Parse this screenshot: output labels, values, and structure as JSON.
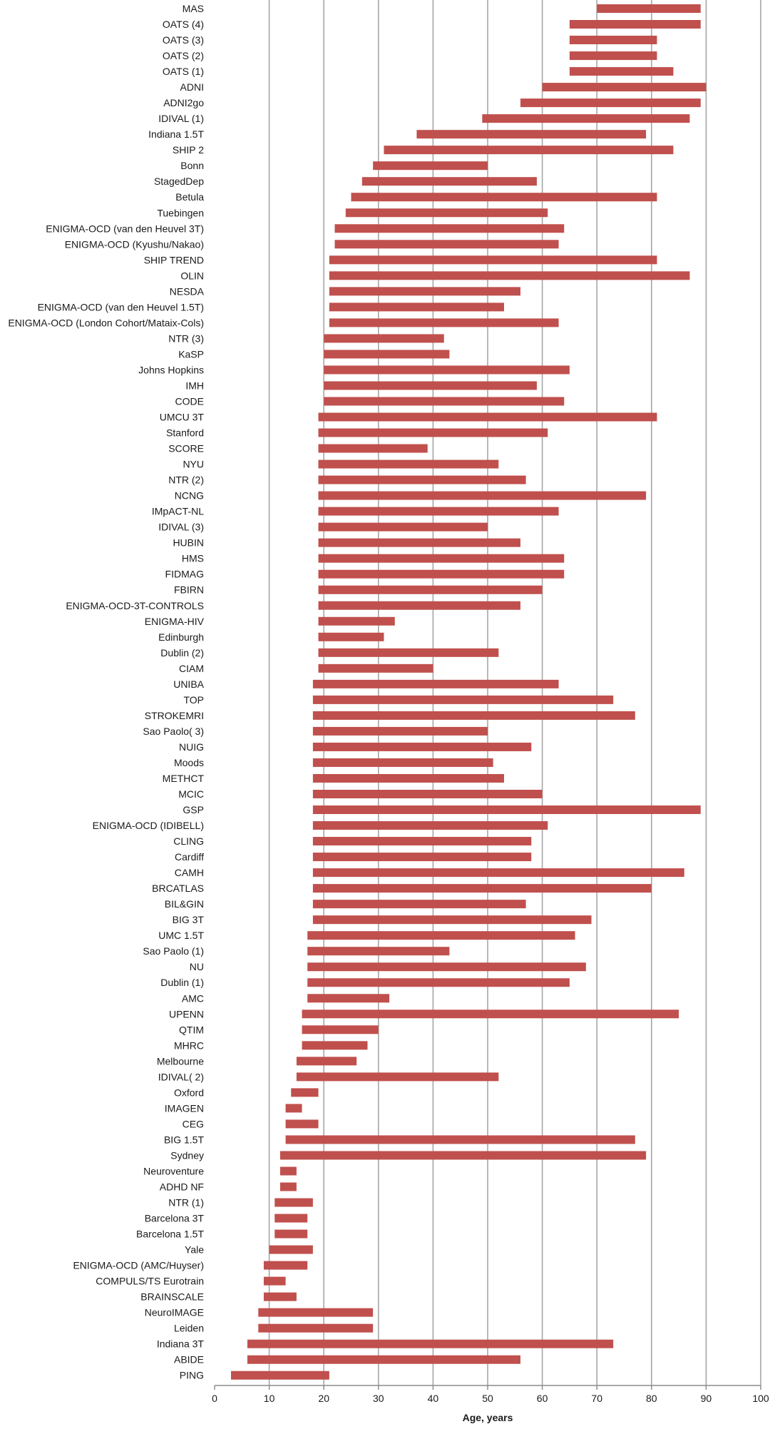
{
  "chart_data": {
    "type": "bar",
    "orientation": "horizontal",
    "subtype": "floating-range",
    "xlabel": "Age, years",
    "xlim": [
      0,
      100
    ],
    "xticks": [
      0,
      10,
      20,
      30,
      40,
      50,
      60,
      70,
      80,
      90,
      100
    ],
    "grid": true,
    "bar_color": "#c0504d",
    "categories": [
      "MAS",
      "OATS (4)",
      "OATS (3)",
      "OATS (2)",
      "OATS (1)",
      "ADNI",
      "ADNI2go",
      "IDIVAL (1)",
      "Indiana 1.5T",
      "SHIP 2",
      "Bonn",
      "StagedDep",
      "Betula",
      "Tuebingen",
      "ENIGMA-OCD (van den Heuvel 3T)",
      "ENIGMA-OCD (Kyushu/Nakao)",
      "SHIP TREND",
      "OLIN",
      "NESDA",
      "ENIGMA-OCD (van den Heuvel 1.5T)",
      "ENIGMA-OCD (London Cohort/Mataix-Cols)",
      "NTR (3)",
      "KaSP",
      "Johns Hopkins",
      "IMH",
      "CODE",
      "UMCU 3T",
      "Stanford",
      "SCORE",
      "NYU",
      "NTR (2)",
      "NCNG",
      "IMpACT-NL",
      "IDIVAL (3)",
      "HUBIN",
      "HMS",
      "FIDMAG",
      "FBIRN",
      "ENIGMA-OCD-3T-CONTROLS",
      "ENIGMA-HIV",
      "Edinburgh",
      "Dublin (2)",
      "CIAM",
      "UNIBA",
      "TOP",
      "STROKEMRI",
      "Sao Paolo( 3)",
      "NUIG",
      "Moods",
      "METHCT",
      "MCIC",
      "GSP",
      "ENIGMA-OCD (IDIBELL)",
      "CLING",
      "Cardiff",
      "CAMH",
      "BRCATLAS",
      "BIL&GIN",
      "BIG 3T",
      "UMC  1.5T",
      "Sao Paolo (1)",
      "NU",
      "Dublin (1)",
      "AMC",
      "UPENN",
      "QTIM",
      "MHRC",
      "Melbourne",
      "IDIVAL( 2)",
      "Oxford",
      "IMAGEN",
      "CEG",
      "BIG 1.5T",
      "Sydney",
      "Neuroventure",
      "ADHD NF",
      "NTR (1)",
      "Barcelona 3T",
      "Barcelona 1.5T",
      "Yale",
      "ENIGMA-OCD (AMC/Huyser)",
      "COMPULS/TS Eurotrain",
      "BRAINSCALE",
      "NeuroIMAGE",
      "Leiden",
      "Indiana 3T",
      "ABIDE",
      "PING"
    ],
    "start": [
      70,
      65,
      65,
      65,
      65,
      60,
      56,
      49,
      37,
      31,
      29,
      27,
      25,
      24,
      22,
      22,
      21,
      21,
      21,
      21,
      21,
      20,
      20,
      20,
      20,
      20,
      19,
      19,
      19,
      19,
      19,
      19,
      19,
      19,
      19,
      19,
      19,
      19,
      19,
      19,
      19,
      19,
      19,
      18,
      18,
      18,
      18,
      18,
      18,
      18,
      18,
      18,
      18,
      18,
      18,
      18,
      18,
      18,
      18,
      17,
      17,
      17,
      17,
      17,
      16,
      16,
      16,
      15,
      15,
      14,
      13,
      13,
      13,
      12,
      12,
      12,
      11,
      11,
      11,
      10,
      9,
      9,
      9,
      8,
      8,
      6,
      6,
      3
    ],
    "end": [
      89,
      89,
      81,
      81,
      84,
      90,
      89,
      87,
      79,
      84,
      50,
      59,
      81,
      61,
      64,
      63,
      81,
      87,
      56,
      53,
      63,
      42,
      43,
      65,
      59,
      64,
      81,
      61,
      39,
      52,
      57,
      79,
      63,
      50,
      56,
      64,
      64,
      60,
      56,
      33,
      31,
      52,
      40,
      63,
      73,
      77,
      50,
      58,
      51,
      53,
      60,
      89,
      61,
      58,
      58,
      86,
      80,
      57,
      69,
      66,
      43,
      68,
      65,
      32,
      85,
      30,
      28,
      26,
      52,
      19,
      16,
      19,
      77,
      79,
      15,
      15,
      18,
      17,
      17,
      18,
      17,
      13,
      15,
      29,
      29,
      73,
      56,
      21
    ]
  }
}
